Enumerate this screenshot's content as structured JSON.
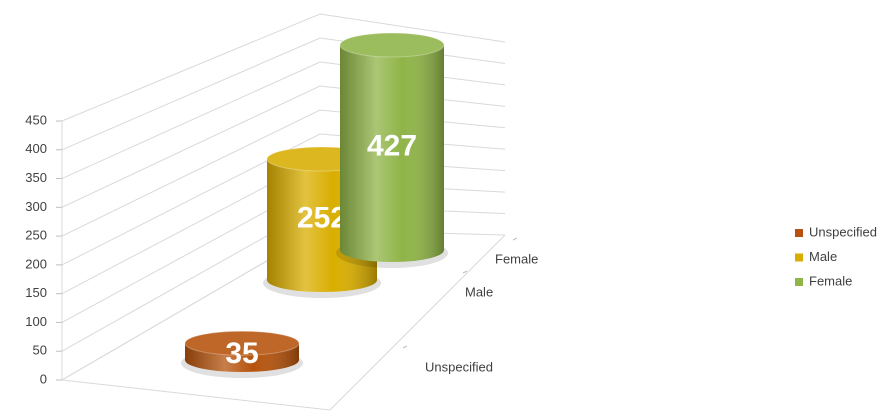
{
  "chart_data": {
    "type": "bar",
    "categories": [
      null
    ],
    "series": [
      {
        "name": "Unspecified",
        "color": "#b5530c",
        "values": [
          35
        ]
      },
      {
        "name": "Male",
        "color": "#d9ae00",
        "values": [
          252
        ]
      },
      {
        "name": "Female",
        "color": "#8fb447",
        "values": [
          427
        ]
      }
    ],
    "ylim": [
      0,
      450
    ],
    "yticks": [
      0,
      50,
      100,
      150,
      200,
      250,
      300,
      350,
      400,
      450
    ],
    "grid": true,
    "legend": "right"
  }
}
